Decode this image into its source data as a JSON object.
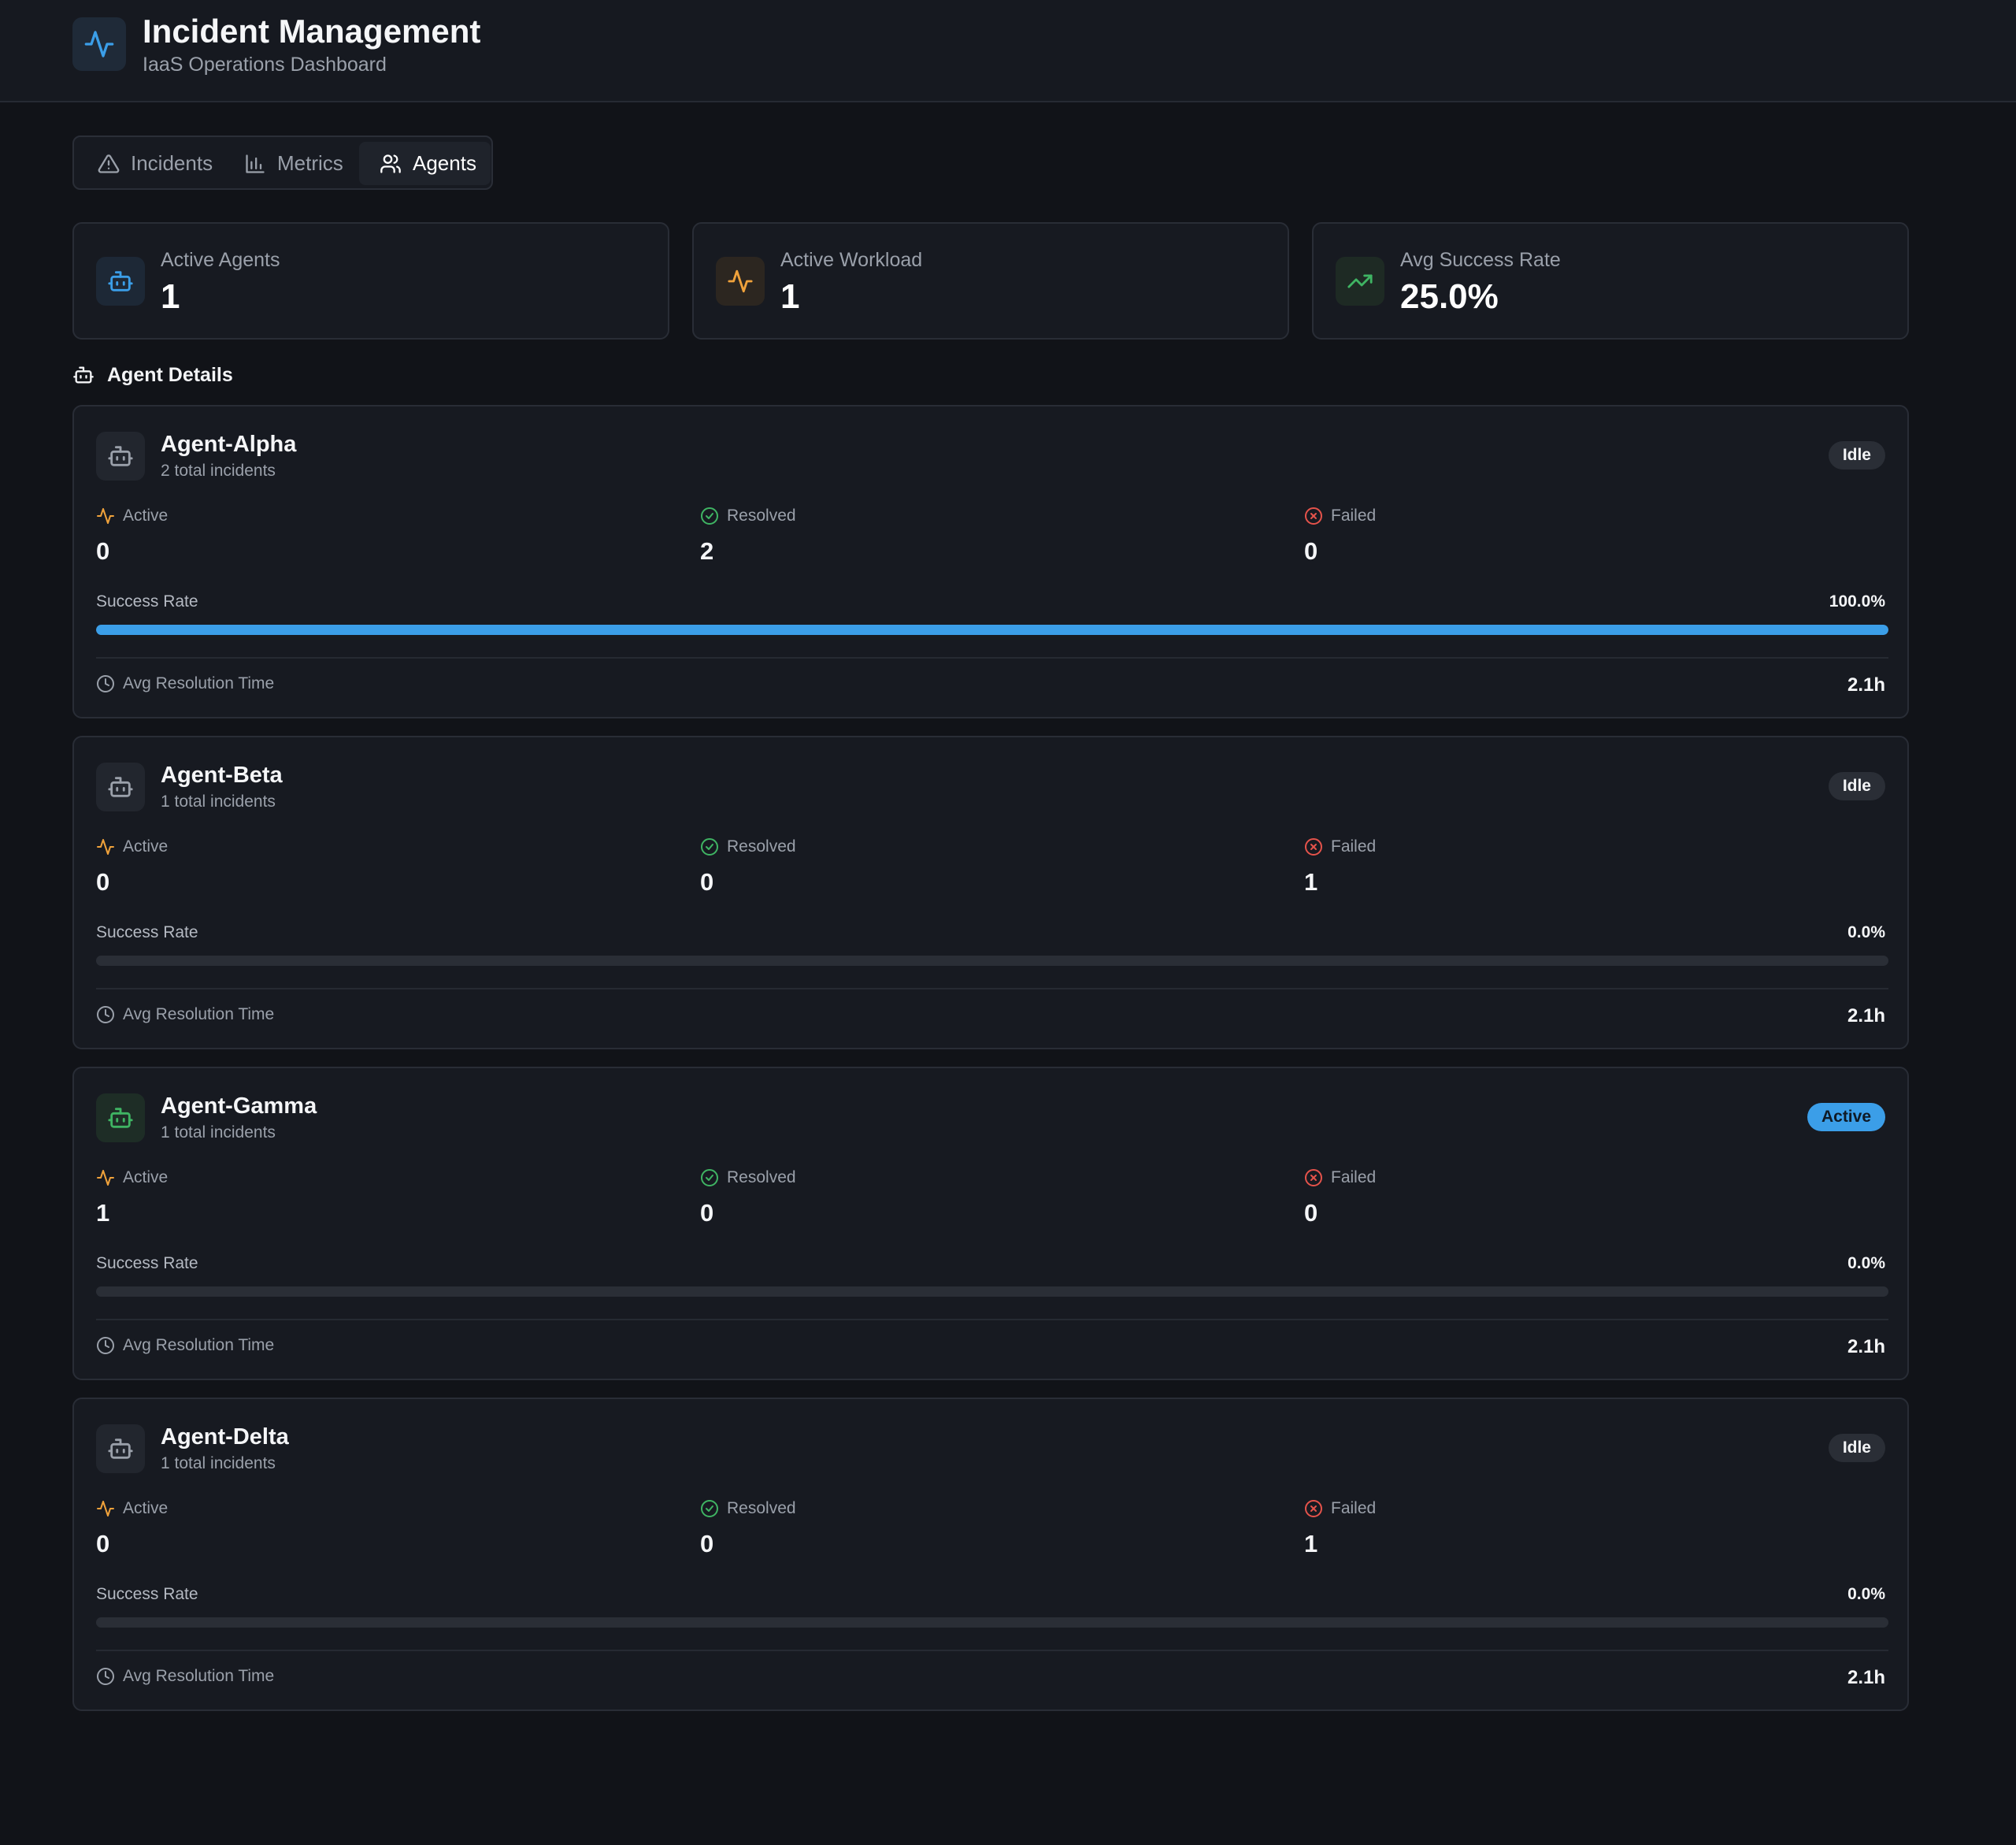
{
  "header": {
    "title": "Incident Management",
    "subtitle": "IaaS Operations Dashboard"
  },
  "tabs": [
    {
      "label": "Incidents",
      "icon": "alert-triangle-icon",
      "active": false
    },
    {
      "label": "Metrics",
      "icon": "bar-chart-icon",
      "active": false
    },
    {
      "label": "Agents",
      "icon": "users-icon",
      "active": true
    }
  ],
  "stats": [
    {
      "label": "Active Agents",
      "value": "1",
      "icon": "bot-icon",
      "color": "#3b9ee8"
    },
    {
      "label": "Active Workload",
      "value": "1",
      "icon": "activity-icon",
      "color": "#f0a23b"
    },
    {
      "label": "Avg Success Rate",
      "value": "25.0%",
      "icon": "trending-up-icon",
      "color": "#3fb463"
    }
  ],
  "section": {
    "title": "Agent Details"
  },
  "labels": {
    "active": "Active",
    "resolved": "Resolved",
    "failed": "Failed",
    "success_rate": "Success Rate",
    "avg_resolution_time": "Avg Resolution Time"
  },
  "colors": {
    "accent": "#3b9ee8",
    "active": "#f0a23b",
    "resolved": "#3fb463",
    "failed": "#e5534b"
  },
  "agents": [
    {
      "name": "Agent-Alpha",
      "subtitle": "2 total incidents",
      "status": "Idle",
      "active": "0",
      "resolved": "2",
      "failed": "0",
      "success_rate": "100.0%",
      "success_fraction": 1.0,
      "avg_resolution": "2.1h"
    },
    {
      "name": "Agent-Beta",
      "subtitle": "1 total incidents",
      "status": "Idle",
      "active": "0",
      "resolved": "0",
      "failed": "1",
      "success_rate": "0.0%",
      "success_fraction": 0.0,
      "avg_resolution": "2.1h"
    },
    {
      "name": "Agent-Gamma",
      "subtitle": "1 total incidents",
      "status": "Active",
      "active": "1",
      "resolved": "0",
      "failed": "0",
      "success_rate": "0.0%",
      "success_fraction": 0.0,
      "avg_resolution": "2.1h"
    },
    {
      "name": "Agent-Delta",
      "subtitle": "1 total incidents",
      "status": "Idle",
      "active": "0",
      "resolved": "0",
      "failed": "1",
      "success_rate": "0.0%",
      "success_fraction": 0.0,
      "avg_resolution": "2.1h"
    }
  ]
}
